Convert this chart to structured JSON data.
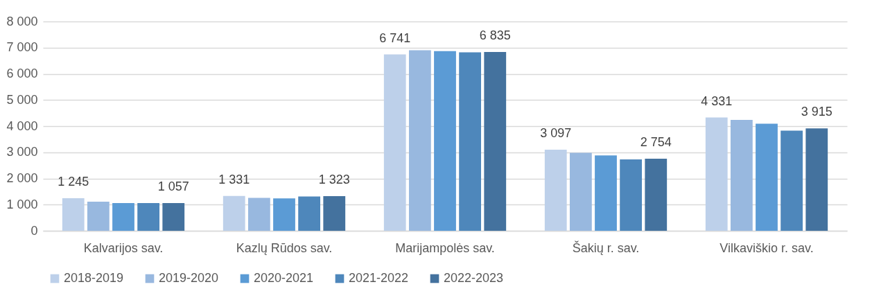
{
  "chart_data": {
    "type": "bar",
    "categories": [
      "Kalvarijos sav.",
      "Kazlų Rūdos sav.",
      "Marijampolės sav.",
      "Šakių r. sav.",
      "Vilkaviškio r. sav."
    ],
    "series": [
      {
        "name": "2018-2019",
        "color": "#bdd0ea",
        "values": [
          1245,
          1331,
          6741,
          3097,
          4331
        ],
        "value_labels": [
          "1 245",
          "1 331",
          "6 741",
          "3 097",
          "4 331"
        ]
      },
      {
        "name": "2019-2020",
        "color": "#98b8df",
        "values": [
          1110,
          1260,
          6900,
          2980,
          4240
        ]
      },
      {
        "name": "2020-2021",
        "color": "#5b9bd5",
        "values": [
          1060,
          1240,
          6870,
          2880,
          4090
        ]
      },
      {
        "name": "2021-2022",
        "color": "#4e87bb",
        "values": [
          1060,
          1310,
          6820,
          2730,
          3830
        ]
      },
      {
        "name": "2022-2023",
        "color": "#44729e",
        "values": [
          1057,
          1323,
          6835,
          2754,
          3915
        ],
        "value_labels": [
          "1 057",
          "1 323",
          "6 835",
          "2 754",
          "3 915"
        ]
      }
    ],
    "ylim": [
      0,
      8000
    ],
    "yticks": [
      0,
      {
        "value": 1000,
        "label": "1 000"
      },
      {
        "value": 2000,
        "label": "2 000"
      },
      {
        "value": 3000,
        "label": "3 000"
      },
      {
        "value": 4000,
        "label": "4 000"
      },
      {
        "value": 5000,
        "label": "5 000"
      },
      {
        "value": 6000,
        "label": "6 000"
      },
      {
        "value": 7000,
        "label": "7 000"
      },
      {
        "value": 8000,
        "label": "8 000"
      }
    ],
    "grid": "y",
    "legend": "bottom"
  }
}
